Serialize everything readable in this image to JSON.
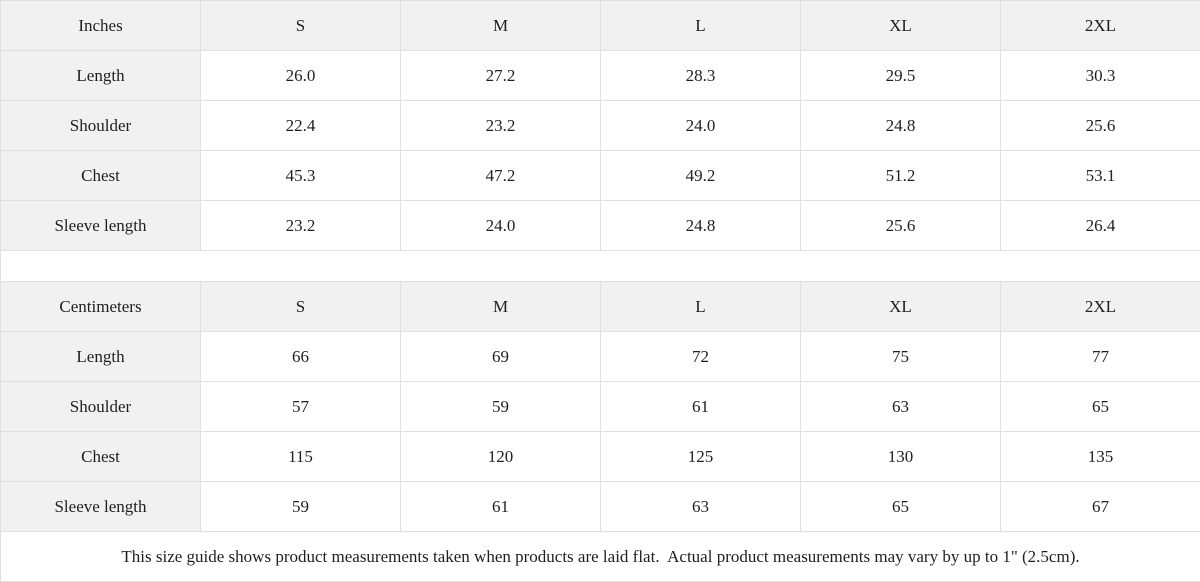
{
  "colors": {
    "header_bg": "#f1f1f1",
    "border": "#e0e0e0",
    "text": "#1f1f1f"
  },
  "inches_table": {
    "unit_label": "Inches",
    "sizes": [
      "S",
      "M",
      "L",
      "XL",
      "2XL"
    ],
    "rows": [
      {
        "label": "Length",
        "values": [
          "26.0",
          "27.2",
          "28.3",
          "29.5",
          "30.3"
        ]
      },
      {
        "label": "Shoulder",
        "values": [
          "22.4",
          "23.2",
          "24.0",
          "24.8",
          "25.6"
        ]
      },
      {
        "label": "Chest",
        "values": [
          "45.3",
          "47.2",
          "49.2",
          "51.2",
          "53.1"
        ]
      },
      {
        "label": "Sleeve length",
        "values": [
          "23.2",
          "24.0",
          "24.8",
          "25.6",
          "26.4"
        ]
      }
    ]
  },
  "centimeters_table": {
    "unit_label": "Centimeters",
    "sizes": [
      "S",
      "M",
      "L",
      "XL",
      "2XL"
    ],
    "rows": [
      {
        "label": "Length",
        "values": [
          "66",
          "69",
          "72",
          "75",
          "77"
        ]
      },
      {
        "label": "Shoulder",
        "values": [
          "57",
          "59",
          "61",
          "63",
          "65"
        ]
      },
      {
        "label": "Chest",
        "values": [
          "115",
          "120",
          "125",
          "130",
          "135"
        ]
      },
      {
        "label": "Sleeve length",
        "values": [
          "59",
          "61",
          "63",
          "65",
          "67"
        ]
      }
    ]
  },
  "footer": {
    "note": "This size guide shows product measurements taken when products are laid flat.  Actual product measurements may vary by up to 1\" (2.5cm)."
  }
}
